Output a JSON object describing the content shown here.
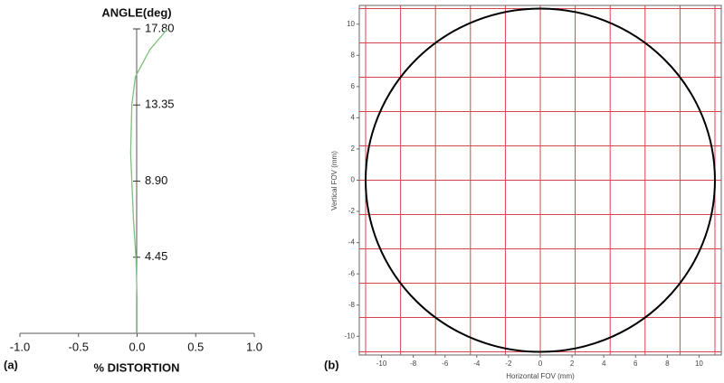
{
  "chart_data": [
    {
      "type": "line",
      "title": "ANGLE(deg)",
      "xlabel": "% DISTORTION",
      "panel": "(a)",
      "xlim": [
        -1,
        1
      ],
      "ylim": [
        0,
        17.8
      ],
      "xticks": [
        {
          "value": -1,
          "label": "-1.0"
        },
        {
          "value": -0.5,
          "label": "-0.5"
        },
        {
          "value": 0,
          "label": "0.0"
        },
        {
          "value": 0.5,
          "label": "0.5"
        },
        {
          "value": 1,
          "label": "1.0"
        }
      ],
      "yticks": [
        4.45,
        {
          "value": 8.9,
          "label": "8.90"
        },
        13.35,
        {
          "value": 17.8,
          "label": "17.80"
        }
      ],
      "series": [
        {
          "color": "#7fbf7f",
          "x": [
            0,
            0,
            -0.01,
            -0.03,
            -0.045,
            -0.055,
            -0.05,
            -0.045,
            -0.015,
            0.11,
            0.26
          ],
          "values": [
            0,
            2,
            4.45,
            6.5,
            8.9,
            10.5,
            12,
            13.35,
            15,
            16.6,
            17.8
          ]
        }
      ]
    },
    {
      "type": "grid",
      "xlabel": "Horizontal FOV (mm)",
      "ylabel": "Vertical FOV (mm)",
      "panel": "(b)",
      "xlim": [
        -11.4,
        11.4
      ],
      "ylim": [
        -11.2,
        11.2
      ],
      "xticks": [
        -10,
        -8,
        -6,
        -4,
        -2,
        0,
        2,
        4,
        6,
        8,
        10
      ],
      "yticks": [
        -10,
        -8,
        -6,
        -4,
        -2,
        0,
        2,
        4,
        6,
        8,
        10
      ],
      "grid_lines": [
        -11,
        -8.8,
        -6.6,
        -4.4,
        -2.2,
        0,
        2.2,
        4.4,
        6.6,
        8.8,
        11
      ],
      "grid_color": "#d9434b",
      "circle_radius": 11,
      "circle_color": "#000000"
    }
  ]
}
